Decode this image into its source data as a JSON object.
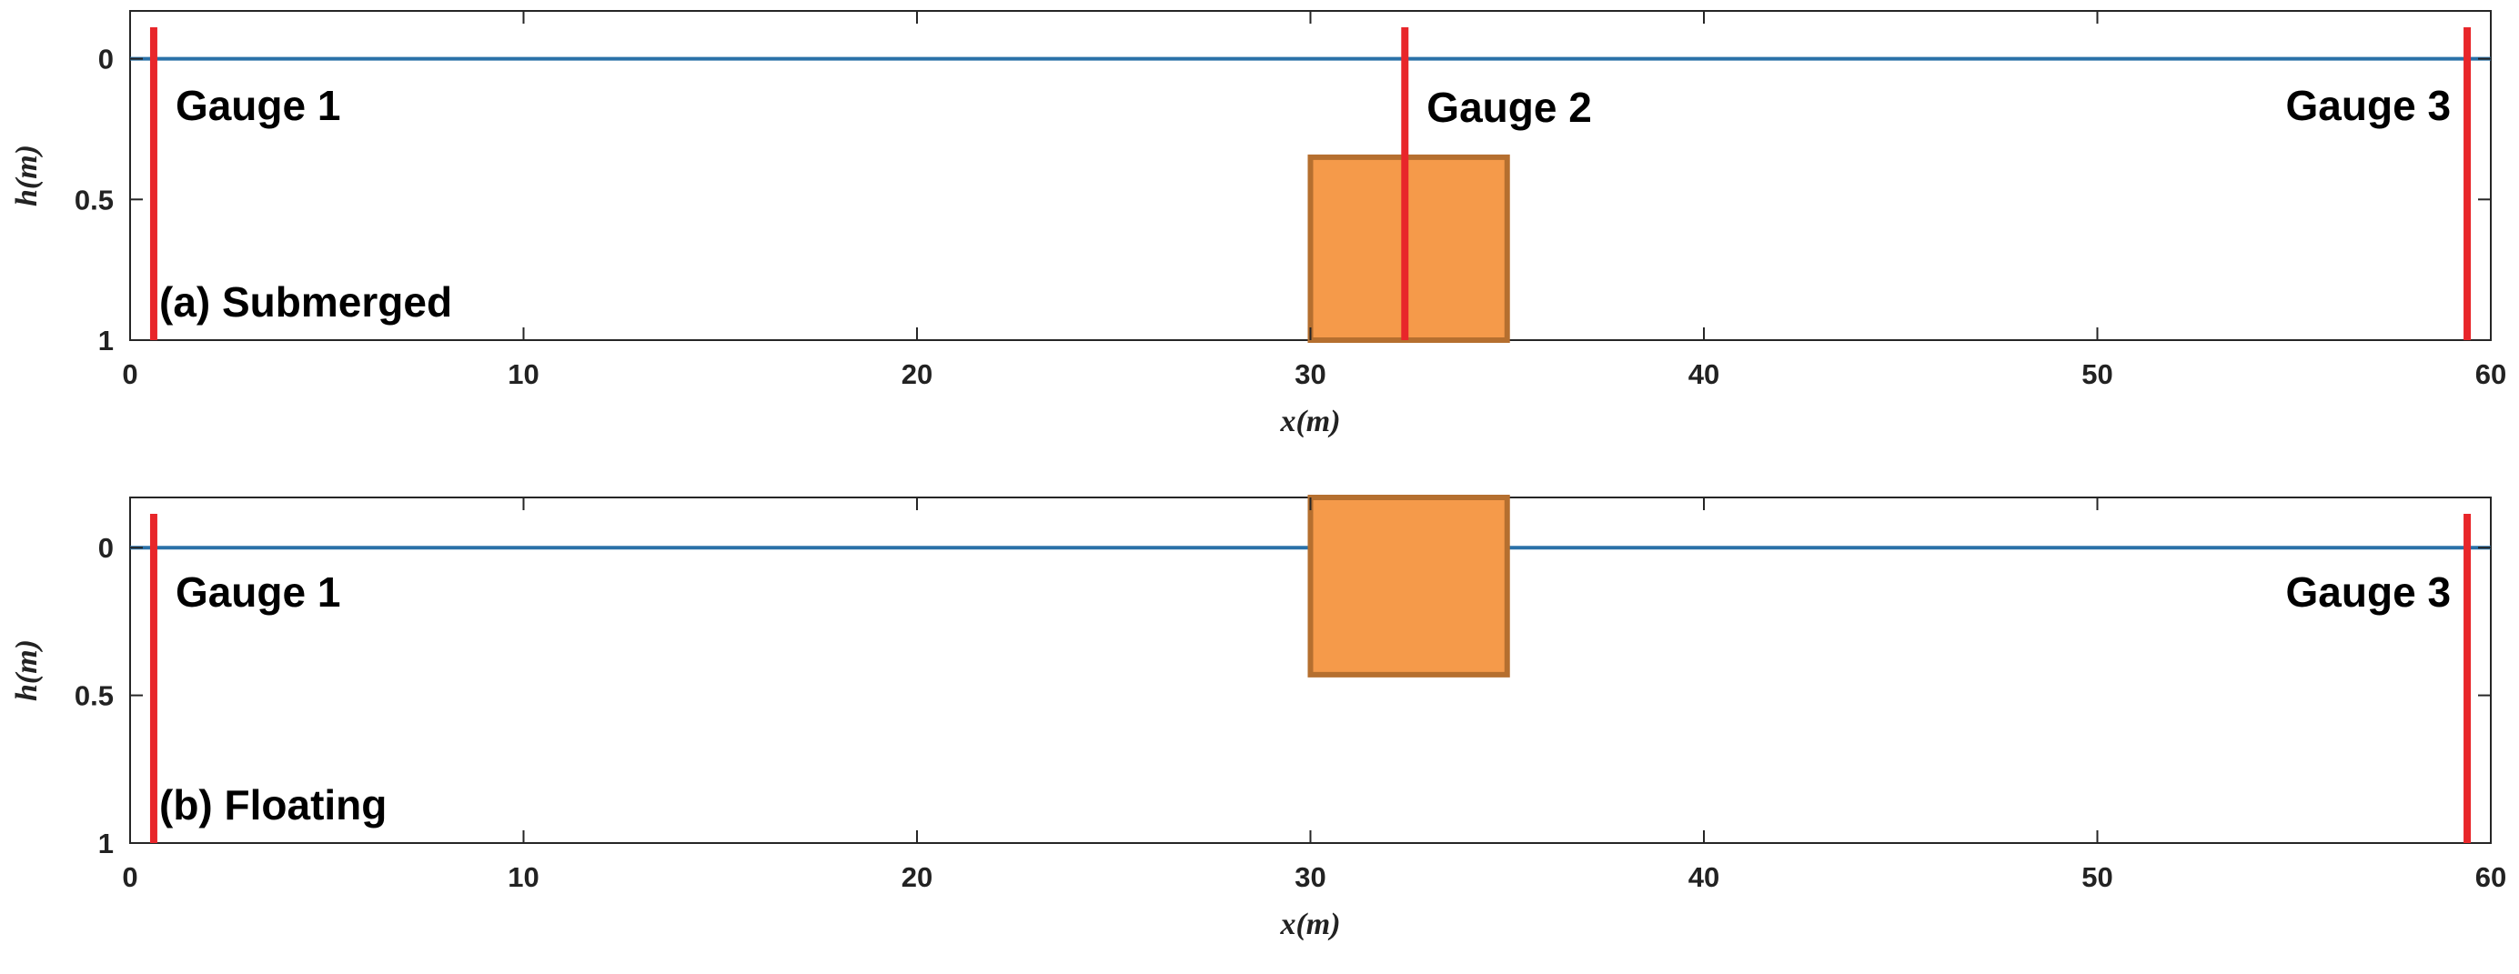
{
  "colors": {
    "water_line": "#2a71a8",
    "gauge": "#e8262a",
    "block_fill": "#f59a4a",
    "block_stroke": "#b56f2f",
    "axis": "#262626"
  },
  "panels": [
    {
      "label": "(a) Submerged",
      "xlabel": "x(m)",
      "ylabel": "h(m)",
      "xlim": [
        0,
        60
      ],
      "ylim": [
        -0.17,
        1
      ],
      "x_ticks": [
        "0",
        "10",
        "20",
        "30",
        "40",
        "50",
        "60"
      ],
      "y_ticks": [
        "0",
        "0.5",
        "1"
      ],
      "water_level": 0,
      "block": {
        "x_start": 30,
        "x_end": 35,
        "h_top": 0.35,
        "h_bottom": 1.0
      },
      "gauges": [
        {
          "name": "Gauge 1",
          "x": 0.6
        },
        {
          "name": "Gauge 2",
          "x": 32.4
        },
        {
          "name": "Gauge 3",
          "x": 59.4
        }
      ]
    },
    {
      "label": "(b) Floating",
      "xlabel": "x(m)",
      "ylabel": "h(m)",
      "xlim": [
        0,
        60
      ],
      "ylim": [
        -0.17,
        1
      ],
      "x_ticks": [
        "0",
        "10",
        "20",
        "30",
        "40",
        "50",
        "60"
      ],
      "y_ticks": [
        "0",
        "0.5",
        "1"
      ],
      "water_level": 0,
      "block": {
        "x_start": 30,
        "x_end": 35,
        "h_top": -0.17,
        "h_bottom": 0.43
      },
      "gauges": [
        {
          "name": "Gauge 1",
          "x": 0.6
        },
        {
          "name": "Gauge 3",
          "x": 59.4
        }
      ]
    }
  ]
}
